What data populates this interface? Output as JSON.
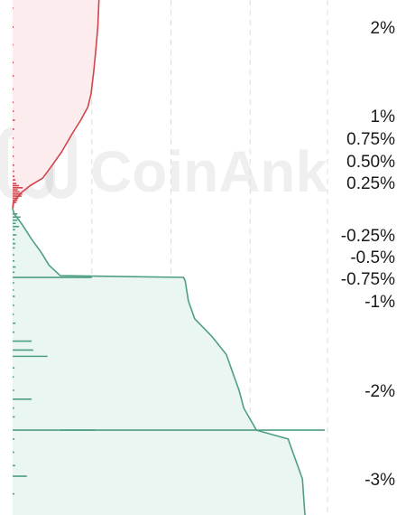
{
  "watermark": "CoinAnk",
  "colors": {
    "ask": "#d0454c",
    "ask_fill": "#fdeced",
    "bid": "#4f9e84",
    "bid_fill": "#eaf6f2",
    "grid": "#dddddd"
  },
  "chart_data": {
    "type": "area",
    "ylabel": "",
    "xlabel": "",
    "ylim": [
      -3.3,
      2.3
    ],
    "y_ticks": [
      {
        "value": 2.0,
        "label": "2%"
      },
      {
        "value": 1.0,
        "label": "1%"
      },
      {
        "value": 0.75,
        "label": "0.75%"
      },
      {
        "value": 0.5,
        "label": "0.50%"
      },
      {
        "value": 0.25,
        "label": "0.25%"
      },
      {
        "value": -0.25,
        "label": "-0.25%"
      },
      {
        "value": -0.5,
        "label": "-0.5%"
      },
      {
        "value": -0.75,
        "label": "-0.75%"
      },
      {
        "value": -1.0,
        "label": "-1%"
      },
      {
        "value": -2.0,
        "label": "-2%"
      },
      {
        "value": -3.0,
        "label": "-3%"
      }
    ],
    "x_gridlines": 4,
    "series": [
      {
        "side": "ask",
        "cumulative": [
          {
            "y": 0.0,
            "x": 0.0
          },
          {
            "y": 0.06,
            "x": 0.2
          },
          {
            "y": 0.15,
            "x": 2.6
          },
          {
            "y": 0.22,
            "x": 5.5
          },
          {
            "y": 0.3,
            "x": 9.5
          },
          {
            "y": 0.45,
            "x": 12.5
          },
          {
            "y": 0.6,
            "x": 15.5
          },
          {
            "y": 0.8,
            "x": 18.8
          },
          {
            "y": 0.95,
            "x": 21.5
          },
          {
            "y": 1.1,
            "x": 23.8
          },
          {
            "y": 1.25,
            "x": 24.8
          },
          {
            "y": 1.5,
            "x": 25.6
          },
          {
            "y": 1.75,
            "x": 26.3
          },
          {
            "y": 2.0,
            "x": 26.9
          },
          {
            "y": 2.3,
            "x": 27.4
          }
        ],
        "levels": [
          {
            "y": 0.02,
            "x": 0.4
          },
          {
            "y": 0.04,
            "x": 0.5
          },
          {
            "y": 0.06,
            "x": 1.2
          },
          {
            "y": 0.08,
            "x": 1.5
          },
          {
            "y": 0.1,
            "x": 1.8
          },
          {
            "y": 0.12,
            "x": 2.8
          },
          {
            "y": 0.14,
            "x": 3.0
          },
          {
            "y": 0.16,
            "x": 2.2
          },
          {
            "y": 0.18,
            "x": 1.6
          },
          {
            "y": 0.2,
            "x": 3.2
          },
          {
            "y": 0.22,
            "x": 2.0
          },
          {
            "y": 0.24,
            "x": 1.2
          },
          {
            "y": 0.28,
            "x": 0.9
          },
          {
            "y": 0.32,
            "x": 0.6
          },
          {
            "y": 0.38,
            "x": 0.5
          },
          {
            "y": 0.45,
            "x": 0.5
          },
          {
            "y": 0.55,
            "x": 0.4
          },
          {
            "y": 0.65,
            "x": 0.4
          },
          {
            "y": 0.75,
            "x": 0.3
          },
          {
            "y": 0.85,
            "x": 0.5
          },
          {
            "y": 0.95,
            "x": 0.7
          },
          {
            "y": 1.05,
            "x": 0.4
          },
          {
            "y": 1.15,
            "x": 0.3
          },
          {
            "y": 1.3,
            "x": 0.3
          },
          {
            "y": 1.45,
            "x": 0.4
          },
          {
            "y": 1.6,
            "x": 0.3
          },
          {
            "y": 1.8,
            "x": 0.2
          },
          {
            "y": 2.0,
            "x": 0.3
          },
          {
            "y": 2.15,
            "x": 0.2
          }
        ]
      },
      {
        "side": "bid",
        "cumulative": [
          {
            "y": 0.0,
            "x": 0.0
          },
          {
            "y": -0.05,
            "x": 0.5
          },
          {
            "y": -0.15,
            "x": 3.0
          },
          {
            "y": -0.3,
            "x": 6.0
          },
          {
            "y": -0.45,
            "x": 9.0
          },
          {
            "y": -0.6,
            "x": 11.5
          },
          {
            "y": -0.72,
            "x": 15.0
          },
          {
            "y": -0.74,
            "x": 54.0
          },
          {
            "y": -0.78,
            "x": 54.5
          },
          {
            "y": -1.0,
            "x": 55.5
          },
          {
            "y": -1.2,
            "x": 57.5
          },
          {
            "y": -1.4,
            "x": 63.0
          },
          {
            "y": -1.6,
            "x": 67.5
          },
          {
            "y": -1.8,
            "x": 69.5
          },
          {
            "y": -2.0,
            "x": 71.5
          },
          {
            "y": -2.2,
            "x": 73.0
          },
          {
            "y": -2.45,
            "x": 77.0
          },
          {
            "y": -2.55,
            "x": 87.0
          },
          {
            "y": -2.7,
            "x": 88.5
          },
          {
            "y": -3.0,
            "x": 91.5
          },
          {
            "y": -3.3,
            "x": 92.5
          }
        ],
        "levels": [
          {
            "y": -0.02,
            "x": 0.4
          },
          {
            "y": -0.05,
            "x": 1.5
          },
          {
            "y": -0.08,
            "x": 2.5
          },
          {
            "y": -0.11,
            "x": 1.5
          },
          {
            "y": -0.14,
            "x": 1.0
          },
          {
            "y": -0.17,
            "x": 2.0
          },
          {
            "y": -0.2,
            "x": 0.8
          },
          {
            "y": -0.25,
            "x": 1.2
          },
          {
            "y": -0.3,
            "x": 0.6
          },
          {
            "y": -0.35,
            "x": 0.9
          },
          {
            "y": -0.4,
            "x": 0.7
          },
          {
            "y": -0.48,
            "x": 0.5
          },
          {
            "y": -0.55,
            "x": 0.6
          },
          {
            "y": -0.62,
            "x": 1.0
          },
          {
            "y": -0.68,
            "x": 0.6
          },
          {
            "y": -0.74,
            "x": 25.0
          },
          {
            "y": -0.8,
            "x": 0.5
          },
          {
            "y": -0.88,
            "x": 0.4
          },
          {
            "y": -0.95,
            "x": 0.7
          },
          {
            "y": -1.05,
            "x": 0.5
          },
          {
            "y": -1.15,
            "x": 0.4
          },
          {
            "y": -1.25,
            "x": 0.9
          },
          {
            "y": -1.35,
            "x": 0.6
          },
          {
            "y": -1.45,
            "x": 6.0
          },
          {
            "y": -1.55,
            "x": 6.5
          },
          {
            "y": -1.62,
            "x": 11.0
          },
          {
            "y": -1.75,
            "x": 0.6
          },
          {
            "y": -1.85,
            "x": 0.4
          },
          {
            "y": -2.0,
            "x": 0.5
          },
          {
            "y": -2.1,
            "x": 6.0
          },
          {
            "y": -2.2,
            "x": 0.5
          },
          {
            "y": -2.3,
            "x": 0.7
          },
          {
            "y": -2.45,
            "x": 26.0
          },
          {
            "y": -2.55,
            "x": 0.6
          },
          {
            "y": -2.7,
            "x": 0.5
          },
          {
            "y": -2.85,
            "x": 0.8
          },
          {
            "y": -2.97,
            "x": 4.5
          },
          {
            "y": -3.1,
            "x": 0.6
          },
          {
            "y": -3.25,
            "x": 0.5
          }
        ]
      }
    ]
  }
}
